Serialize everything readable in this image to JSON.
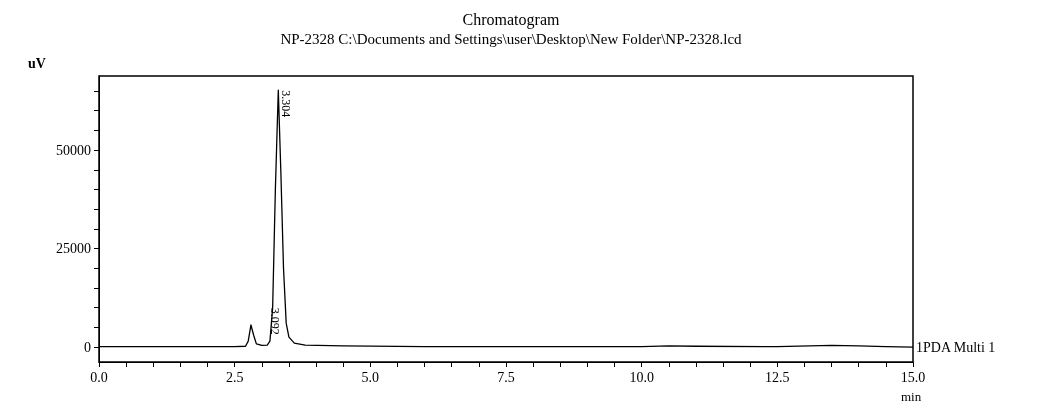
{
  "chart_data": {
    "type": "line",
    "title": "Chromatogram",
    "subtitle": "NP-2328 C:\\Documents and Settings\\user\\Desktop\\New Folder\\NP-2328.lcd",
    "xlabel": "min",
    "ylabel": "uV",
    "series": [
      {
        "name": "1PDA Multi 1",
        "color": "#000000",
        "x": [
          0,
          1,
          2,
          2.5,
          2.7,
          2.75,
          2.8,
          2.85,
          2.9,
          3.0,
          3.1,
          3.15,
          3.2,
          3.25,
          3.304,
          3.35,
          3.4,
          3.45,
          3.5,
          3.6,
          3.8,
          4.5,
          6.0,
          8.0,
          10.0,
          10.5,
          11.0,
          12.5,
          13.5,
          14.0,
          14.5,
          15.0
        ],
        "values": [
          100,
          100,
          100,
          100,
          200,
          1500,
          5600,
          3000,
          800,
          400,
          500,
          1500,
          10000,
          40000,
          65200,
          45000,
          20000,
          6000,
          2500,
          1000,
          500,
          300,
          100,
          100,
          100,
          300,
          200,
          100,
          400,
          300,
          100,
          0
        ]
      }
    ],
    "annotations": [
      {
        "text": "3.304",
        "x": 3.304,
        "y": 65200
      },
      {
        "text": "3.092",
        "x": 3.092,
        "y": 10000
      }
    ],
    "xlim": [
      0,
      15
    ],
    "ylim": [
      -3800,
      68800
    ],
    "xticks": [
      {
        "value": 0,
        "label": "0.0"
      },
      {
        "value": 0.5,
        "label": null
      },
      {
        "value": 1,
        "label": null
      },
      {
        "value": 1.5,
        "label": null
      },
      {
        "value": 2,
        "label": null
      },
      {
        "value": 2.5,
        "label": "2.5"
      },
      {
        "value": 3,
        "label": null
      },
      {
        "value": 3.5,
        "label": null
      },
      {
        "value": 4,
        "label": null
      },
      {
        "value": 4.5,
        "label": null
      },
      {
        "value": 5,
        "label": "5.0"
      },
      {
        "value": 5.5,
        "label": null
      },
      {
        "value": 6,
        "label": null
      },
      {
        "value": 6.5,
        "label": null
      },
      {
        "value": 7,
        "label": null
      },
      {
        "value": 7.5,
        "label": "7.5"
      },
      {
        "value": 8,
        "label": null
      },
      {
        "value": 8.5,
        "label": null
      },
      {
        "value": 9,
        "label": null
      },
      {
        "value": 9.5,
        "label": null
      },
      {
        "value": 10,
        "label": "10.0"
      },
      {
        "value": 10.5,
        "label": null
      },
      {
        "value": 11,
        "label": null
      },
      {
        "value": 11.5,
        "label": null
      },
      {
        "value": 12,
        "label": null
      },
      {
        "value": 12.5,
        "label": "12.5"
      },
      {
        "value": 13,
        "label": null
      },
      {
        "value": 13.5,
        "label": null
      },
      {
        "value": 14,
        "label": null
      },
      {
        "value": 14.5,
        "label": null
      },
      {
        "value": 15,
        "label": "15.0"
      }
    ],
    "yticks": [
      0,
      {
        "value": 5000,
        "label": null
      },
      {
        "value": 10000,
        "label": null
      },
      {
        "value": 15000,
        "label": null
      },
      {
        "value": 20000,
        "label": null
      },
      25000,
      {
        "value": 30000,
        "label": null
      },
      {
        "value": 35000,
        "label": null
      },
      {
        "value": 40000,
        "label": null
      },
      {
        "value": 45000,
        "label": null
      },
      50000,
      {
        "value": 55000,
        "label": null
      },
      {
        "value": 60000,
        "label": null
      },
      {
        "value": 65000,
        "label": null
      }
    ],
    "grid": false,
    "legend": false,
    "marker": "none",
    "line_style": "solid"
  }
}
